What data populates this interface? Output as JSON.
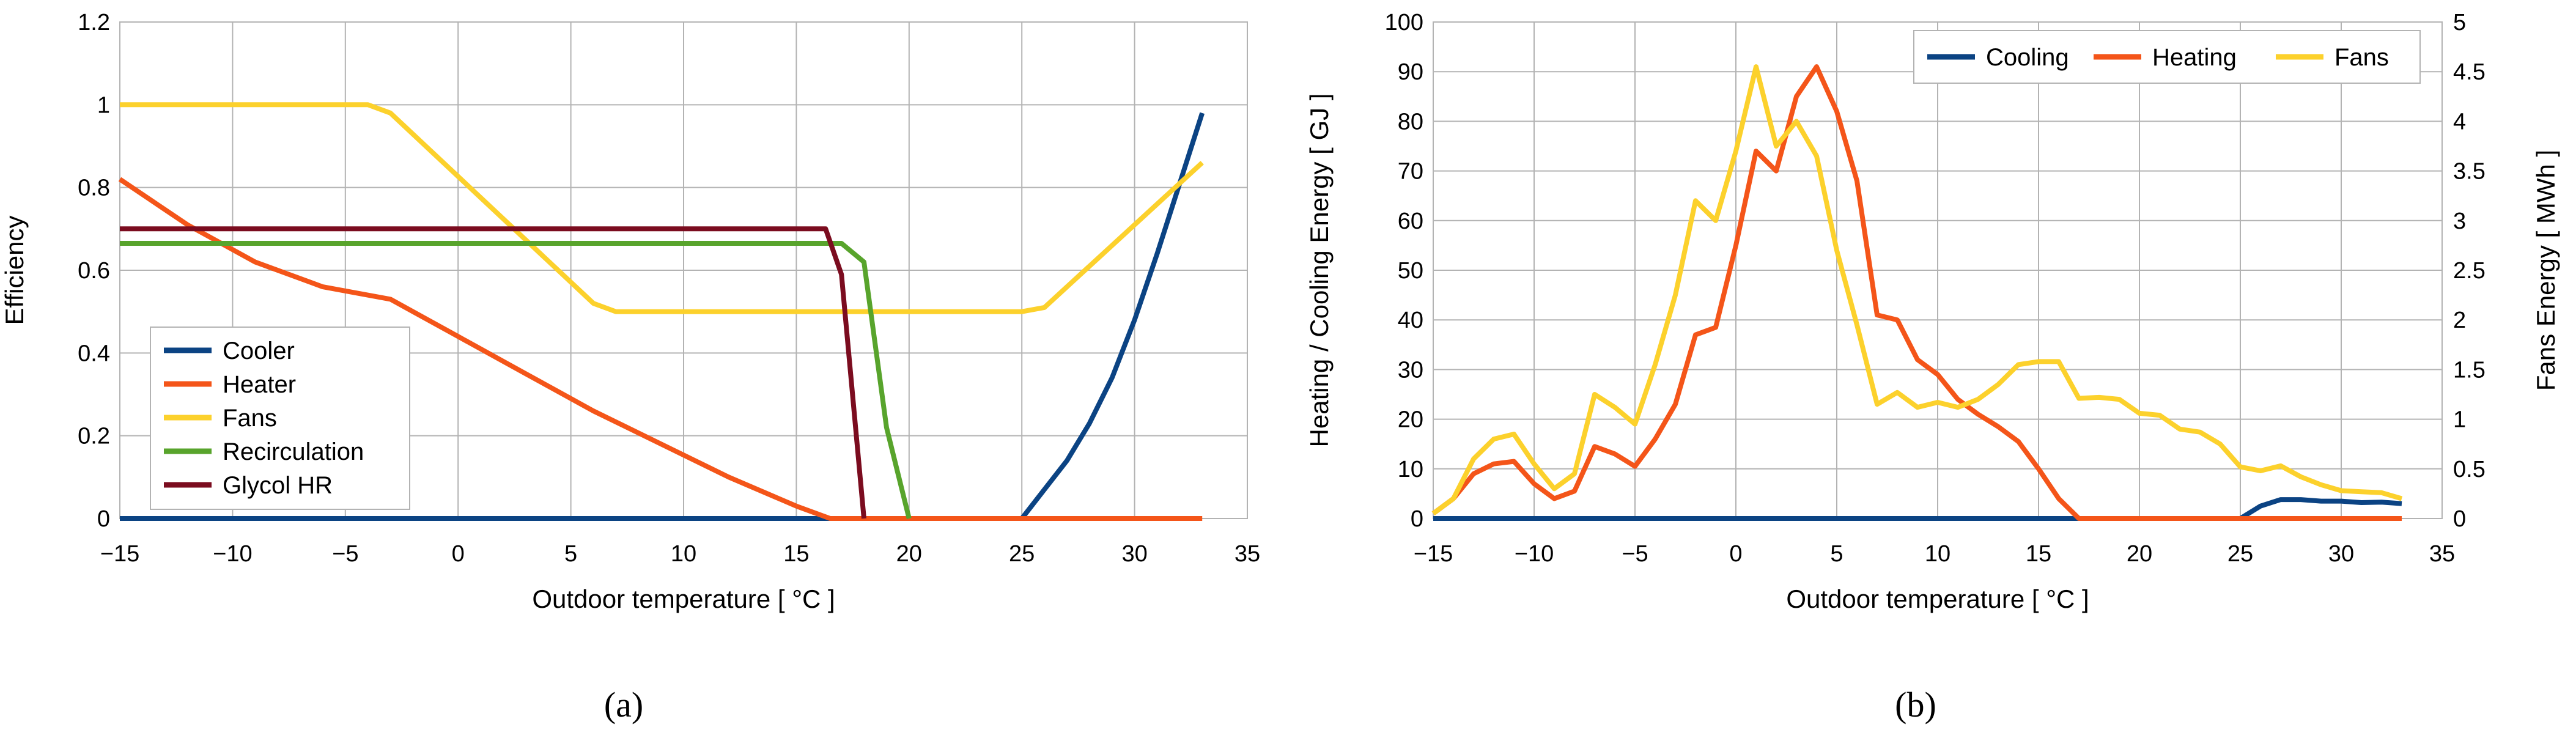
{
  "chart_data": [
    {
      "panel_id": "a",
      "type": "line",
      "caption": "(a)",
      "title": "",
      "xlabel": "Outdoor temperature [ °C ]",
      "ylabel": "Efficiency",
      "xlim": [
        -15,
        35
      ],
      "ylim": [
        0,
        1.2
      ],
      "xticks": [
        "−15",
        "−10",
        "−5",
        "0",
        "5",
        "10",
        "15",
        "20",
        "25",
        "30",
        "35"
      ],
      "xtick_values": [
        -15,
        -10,
        -5,
        0,
        5,
        10,
        15,
        20,
        25,
        30,
        35
      ],
      "yticks": [
        "0",
        "0.2",
        "0.4",
        "0.6",
        "0.8",
        "1",
        "1.2"
      ],
      "ytick_values": [
        0,
        0.2,
        0.4,
        0.6,
        0.8,
        1,
        1.2
      ],
      "grid": true,
      "legend_position": "bottom-left",
      "series": [
        {
          "name": "Cooler",
          "color": "#0b4383",
          "points": [
            [
              -15,
              0
            ],
            [
              25,
              0
            ],
            [
              26,
              0.07
            ],
            [
              27,
              0.14
            ],
            [
              28,
              0.23
            ],
            [
              29,
              0.34
            ],
            [
              30,
              0.48
            ],
            [
              31,
              0.64
            ],
            [
              32,
              0.81
            ],
            [
              33,
              0.98
            ]
          ]
        },
        {
          "name": "Heater",
          "color": "#f45519",
          "points": [
            [
              -15,
              0.82
            ],
            [
              -12,
              0.71
            ],
            [
              -9,
              0.62
            ],
            [
              -6,
              0.56
            ],
            [
              -3,
              0.53
            ],
            [
              0,
              0.44
            ],
            [
              3,
              0.35
            ],
            [
              6,
              0.26
            ],
            [
              9,
              0.18
            ],
            [
              12,
              0.1
            ],
            [
              15,
              0.03
            ],
            [
              16.5,
              0
            ],
            [
              33,
              0
            ]
          ]
        },
        {
          "name": "Fans",
          "color": "#fcd12c",
          "points": [
            [
              -15,
              1.0
            ],
            [
              -4,
              1.0
            ],
            [
              -3,
              0.98
            ],
            [
              6,
              0.52
            ],
            [
              7,
              0.5
            ],
            [
              25,
              0.5
            ],
            [
              26,
              0.51
            ],
            [
              33,
              0.86
            ]
          ]
        },
        {
          "name": "Recirculation",
          "color": "#58a42c",
          "points": [
            [
              -15,
              0.665
            ],
            [
              17,
              0.665
            ],
            [
              18,
              0.62
            ],
            [
              19,
              0.22
            ],
            [
              20,
              0
            ]
          ]
        },
        {
          "name": "Glycol HR",
          "color": "#7b0c1f",
          "points": [
            [
              -15,
              0.7
            ],
            [
              16.3,
              0.7
            ],
            [
              17,
              0.59
            ],
            [
              18,
              0
            ]
          ]
        }
      ]
    },
    {
      "panel_id": "b",
      "type": "line",
      "caption": "(b)",
      "title": "",
      "xlabel": "Outdoor temperature [ °C ]",
      "ylabel": "Heating / Cooling Energy [ GJ ]",
      "y2label": "Fans Energy [ MWh ]",
      "xlim": [
        -15,
        35
      ],
      "ylim": [
        0,
        100
      ],
      "y2lim": [
        0,
        5
      ],
      "xticks": [
        "−15",
        "−10",
        "−5",
        "0",
        "5",
        "10",
        "15",
        "20",
        "25",
        "30",
        "35"
      ],
      "xtick_values": [
        -15,
        -10,
        -5,
        0,
        5,
        10,
        15,
        20,
        25,
        30,
        35
      ],
      "yticks": [
        "0",
        "10",
        "20",
        "30",
        "40",
        "50",
        "60",
        "70",
        "80",
        "90",
        "100"
      ],
      "ytick_values": [
        0,
        10,
        20,
        30,
        40,
        50,
        60,
        70,
        80,
        90,
        100
      ],
      "y2ticks": [
        "0",
        "0.5",
        "1",
        "1.5",
        "2",
        "2.5",
        "3",
        "3.5",
        "4",
        "4.5",
        "5"
      ],
      "y2tick_values": [
        0,
        0.5,
        1,
        1.5,
        2,
        2.5,
        3,
        3.5,
        4,
        4.5,
        5
      ],
      "grid": true,
      "legend_position": "top-right",
      "series": [
        {
          "name": "Cooling",
          "color": "#0b4383",
          "axis": "left",
          "points": [
            [
              -15,
              0
            ],
            [
              25,
              0
            ],
            [
              26,
              2.5
            ],
            [
              27,
              3.8
            ],
            [
              28,
              3.8
            ],
            [
              29,
              3.5
            ],
            [
              30,
              3.5
            ],
            [
              31,
              3.2
            ],
            [
              32,
              3.3
            ],
            [
              33,
              3.0
            ]
          ]
        },
        {
          "name": "Heating",
          "color": "#f45519",
          "axis": "left",
          "points": [
            [
              -15,
              1
            ],
            [
              -14,
              4
            ],
            [
              -13,
              9
            ],
            [
              -12,
              11
            ],
            [
              -11,
              11.5
            ],
            [
              -10,
              7
            ],
            [
              -9,
              4
            ],
            [
              -8,
              5.5
            ],
            [
              -7,
              14.5
            ],
            [
              -6,
              13
            ],
            [
              -5,
              10.5
            ],
            [
              -4,
              16
            ],
            [
              -3,
              23
            ],
            [
              -2,
              37
            ],
            [
              -1,
              38.5
            ],
            [
              0,
              55
            ],
            [
              1,
              74
            ],
            [
              2,
              70
            ],
            [
              3,
              85
            ],
            [
              4,
              91
            ],
            [
              5,
              82
            ],
            [
              6,
              68
            ],
            [
              7,
              41
            ],
            [
              8,
              40
            ],
            [
              9,
              32
            ],
            [
              10,
              29
            ],
            [
              11,
              24
            ],
            [
              12,
              21
            ],
            [
              13,
              18.5
            ],
            [
              14,
              15.5
            ],
            [
              15,
              10
            ],
            [
              16,
              4
            ],
            [
              17,
              0
            ],
            [
              33,
              0
            ]
          ]
        },
        {
          "name": "Fans",
          "color": "#fcd12c",
          "axis": "right",
          "points": [
            [
              -15,
              0.05
            ],
            [
              -14,
              0.2
            ],
            [
              -13,
              0.6
            ],
            [
              -12,
              0.8
            ],
            [
              -11,
              0.85
            ],
            [
              -10,
              0.55
            ],
            [
              -9,
              0.3
            ],
            [
              -8,
              0.45
            ],
            [
              -7,
              1.25
            ],
            [
              -6,
              1.12
            ],
            [
              -5,
              0.95
            ],
            [
              -4,
              1.55
            ],
            [
              -3,
              2.25
            ],
            [
              -2,
              3.2
            ],
            [
              -1,
              3.0
            ],
            [
              0,
              3.7
            ],
            [
              1,
              4.55
            ],
            [
              2,
              3.75
            ],
            [
              3,
              4.0
            ],
            [
              4,
              3.65
            ],
            [
              5,
              2.7
            ],
            [
              6,
              1.95
            ],
            [
              7,
              1.15
            ],
            [
              8,
              1.27
            ],
            [
              9,
              1.12
            ],
            [
              10,
              1.17
            ],
            [
              11,
              1.12
            ],
            [
              12,
              1.2
            ],
            [
              13,
              1.35
            ],
            [
              14,
              1.55
            ],
            [
              15,
              1.58
            ],
            [
              16,
              1.58
            ],
            [
              17,
              1.21
            ],
            [
              18,
              1.22
            ],
            [
              19,
              1.2
            ],
            [
              20,
              1.06
            ],
            [
              21,
              1.04
            ],
            [
              22,
              0.9
            ],
            [
              23,
              0.87
            ],
            [
              24,
              0.75
            ],
            [
              25,
              0.52
            ],
            [
              26,
              0.48
            ],
            [
              27,
              0.53
            ],
            [
              28,
              0.42
            ],
            [
              29,
              0.34
            ],
            [
              30,
              0.28
            ],
            [
              31,
              0.27
            ],
            [
              32,
              0.26
            ],
            [
              33,
              0.2
            ]
          ]
        }
      ]
    }
  ]
}
